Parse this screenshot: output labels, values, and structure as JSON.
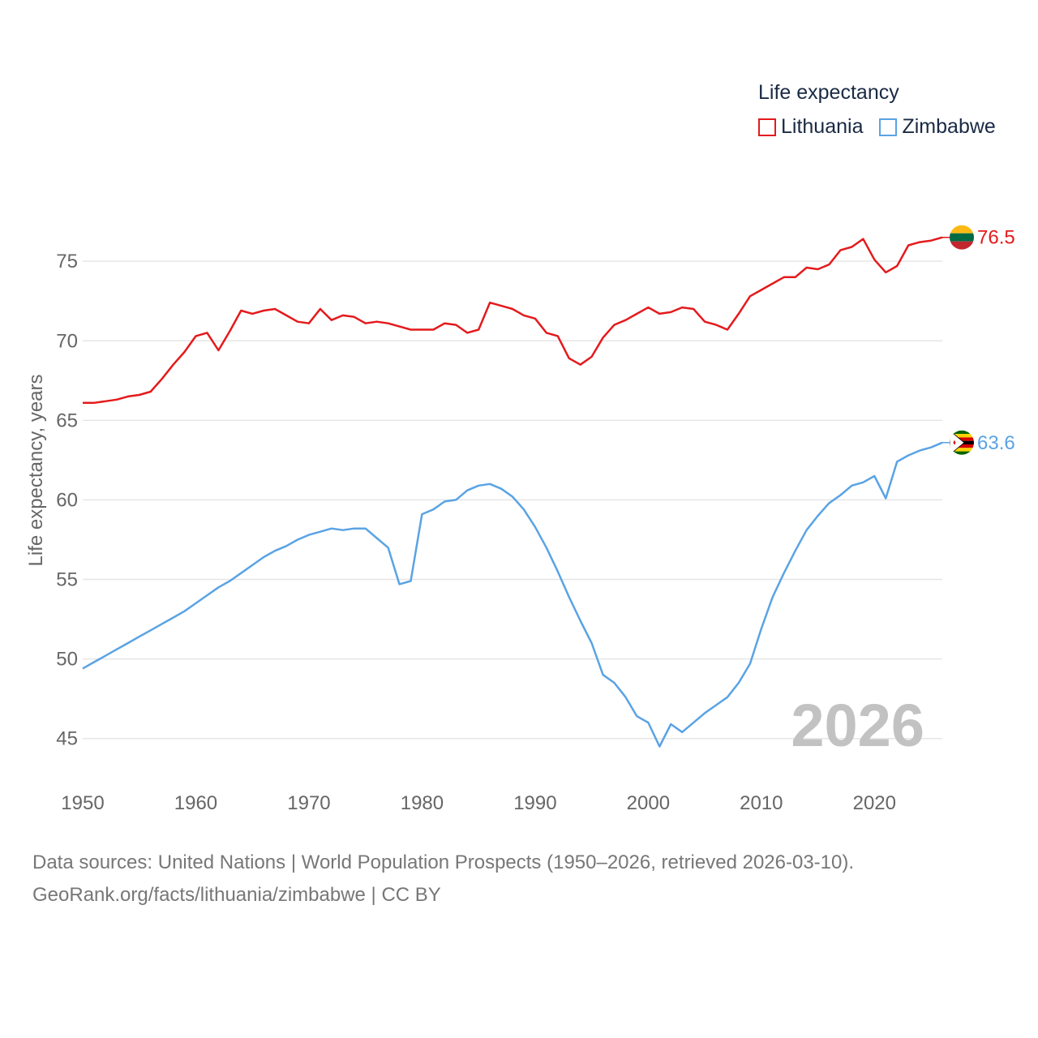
{
  "legend": {
    "title": "Life expectancy",
    "items": [
      {
        "label": "Lithuania",
        "color": "#e41a1c"
      },
      {
        "label": "Zimbabwe",
        "color": "#5aa3e4"
      }
    ]
  },
  "source": {
    "line1": "Data sources: United Nations | World Population Prospects (1950–2026, retrieved 2026-03-10).",
    "line2": "GeoRank.org/facts/lithuania/zimbabwe | CC BY"
  },
  "chart_data": {
    "type": "line",
    "title": "Life expectancy",
    "ylabel": "Life expectancy, years",
    "xlabel": "",
    "year_watermark": "2026",
    "xlim": [
      1950,
      2026
    ],
    "ylim": [
      43.2,
      79.8
    ],
    "x_ticks": [
      1950,
      1960,
      1970,
      1980,
      1990,
      2000,
      2010,
      2020
    ],
    "y_ticks": [
      45,
      50,
      55,
      60,
      65,
      70,
      75
    ],
    "grid": "horizontal",
    "legend_position": "top-right",
    "x": [
      1950,
      1951,
      1952,
      1953,
      1954,
      1955,
      1956,
      1957,
      1958,
      1959,
      1960,
      1961,
      1962,
      1963,
      1964,
      1965,
      1966,
      1967,
      1968,
      1969,
      1970,
      1971,
      1972,
      1973,
      1974,
      1975,
      1976,
      1977,
      1978,
      1979,
      1980,
      1981,
      1982,
      1983,
      1984,
      1985,
      1986,
      1987,
      1988,
      1989,
      1990,
      1991,
      1992,
      1993,
      1994,
      1995,
      1996,
      1997,
      1998,
      1999,
      2000,
      2001,
      2002,
      2003,
      2004,
      2005,
      2006,
      2007,
      2008,
      2009,
      2010,
      2011,
      2012,
      2013,
      2014,
      2015,
      2016,
      2017,
      2018,
      2019,
      2020,
      2021,
      2022,
      2023,
      2024,
      2025,
      2026
    ],
    "series": [
      {
        "name": "Lithuania",
        "color": "#e41a1c",
        "end_label": "76.5",
        "values": [
          66.1,
          66.1,
          66.2,
          66.3,
          66.5,
          66.6,
          66.8,
          67.6,
          68.5,
          69.3,
          70.3,
          70.5,
          69.4,
          70.6,
          71.9,
          71.7,
          71.9,
          72.0,
          71.6,
          71.2,
          71.1,
          72.0,
          71.3,
          71.6,
          71.5,
          71.1,
          71.2,
          71.1,
          70.9,
          70.7,
          70.7,
          70.7,
          71.1,
          71.0,
          70.5,
          70.7,
          72.4,
          72.2,
          72.0,
          71.6,
          71.4,
          70.5,
          70.3,
          68.9,
          68.5,
          69.0,
          70.2,
          71.0,
          71.3,
          71.7,
          72.1,
          71.7,
          71.8,
          72.1,
          72.0,
          71.2,
          71.0,
          70.7,
          71.7,
          72.8,
          73.2,
          73.6,
          74.0,
          74.0,
          74.6,
          74.5,
          74.8,
          75.7,
          75.9,
          76.4,
          75.1,
          74.3,
          74.7,
          76.0,
          76.2,
          76.3,
          76.5
        ]
      },
      {
        "name": "Zimbabwe",
        "color": "#5aa3e4",
        "end_label": "63.6",
        "values": [
          49.4,
          49.8,
          50.2,
          50.6,
          51.0,
          51.4,
          51.8,
          52.2,
          52.6,
          53.0,
          53.5,
          54.0,
          54.5,
          54.9,
          55.4,
          55.9,
          56.4,
          56.8,
          57.1,
          57.5,
          57.8,
          58.0,
          58.2,
          58.1,
          58.2,
          58.2,
          57.6,
          57.0,
          54.7,
          54.9,
          59.1,
          59.4,
          59.9,
          60.0,
          60.6,
          60.9,
          61.0,
          60.7,
          60.2,
          59.4,
          58.3,
          57.0,
          55.5,
          53.9,
          52.4,
          51.0,
          49.0,
          48.5,
          47.6,
          46.4,
          46.0,
          44.5,
          45.9,
          45.4,
          46.0,
          46.6,
          47.1,
          47.6,
          48.5,
          49.7,
          51.9,
          53.9,
          55.4,
          56.8,
          58.1,
          59.0,
          59.8,
          60.3,
          60.9,
          61.1,
          61.5,
          60.1,
          62.4,
          62.8,
          63.1,
          63.3,
          63.6
        ]
      }
    ]
  }
}
